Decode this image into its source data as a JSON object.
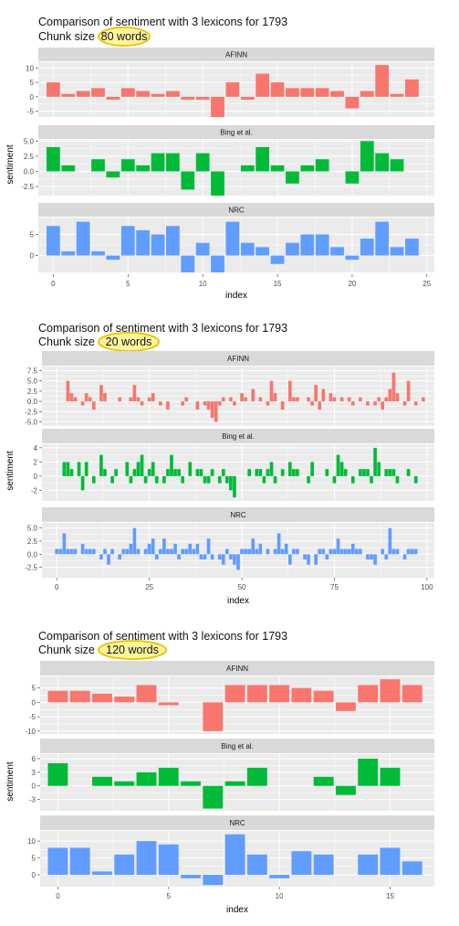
{
  "colors": {
    "AFINN": "#F8766D",
    "Bing et al.": "#00BA38",
    "NRC": "#619CFF",
    "panel_bg": "#EBEBEB",
    "strip_bg": "#D9D9D9",
    "grid": "#FFFFFF",
    "highlight_fill": "#FFF59D",
    "highlight_stroke": "#E6C200"
  },
  "chart_data": [
    {
      "type": "bar",
      "title_line1": "Comparison of sentiment with 3 lexicons for 1793",
      "title_line2_prefix": "Chunk size",
      "title_highlight": "80 words",
      "xlabel": "index",
      "ylabel": "sentiment",
      "xlim": [
        -1,
        25.5
      ],
      "x_ticks": [
        0,
        5,
        10,
        15,
        20,
        25
      ],
      "panels": [
        {
          "name": "AFINN",
          "ylim": [
            -7,
            12
          ],
          "y_ticks": [
            -5,
            0,
            5,
            10
          ],
          "x": [
            0,
            1,
            2,
            3,
            4,
            5,
            6,
            7,
            8,
            9,
            10,
            11,
            12,
            13,
            14,
            15,
            16,
            17,
            18,
            19,
            20,
            21,
            22,
            23,
            24
          ],
          "values": [
            5,
            1,
            2,
            3,
            -1,
            3,
            2,
            1,
            2,
            -1,
            -1,
            -7,
            5,
            -1,
            8,
            5,
            3,
            3,
            3,
            2,
            -4,
            2,
            11,
            1,
            6
          ]
        },
        {
          "name": "Bing et al.",
          "ylim": [
            -4,
            5.2
          ],
          "y_ticks": [
            -2.5,
            0.0,
            2.5,
            5.0
          ],
          "x": [
            0,
            1,
            3,
            4,
            5,
            6,
            7,
            8,
            9,
            10,
            11,
            13,
            14,
            15,
            16,
            17,
            18,
            20,
            21,
            22,
            23
          ],
          "values": [
            4,
            1,
            2,
            -1,
            2,
            1,
            3,
            3,
            -3,
            3,
            -4,
            1,
            4,
            1,
            -2,
            1,
            2,
            -2,
            5,
            3,
            2
          ]
        },
        {
          "name": "NRC",
          "ylim": [
            -4,
            9
          ],
          "y_ticks": [
            0,
            5
          ],
          "x": [
            0,
            1,
            2,
            3,
            4,
            5,
            6,
            7,
            8,
            9,
            10,
            11,
            12,
            13,
            14,
            15,
            16,
            17,
            18,
            19,
            20,
            21,
            22,
            23,
            24
          ],
          "values": [
            7,
            1,
            8,
            1,
            -1,
            7,
            6,
            5,
            7,
            -4,
            3,
            -4,
            8,
            3,
            2,
            -2,
            3,
            5,
            5,
            2,
            -1,
            4,
            8,
            2,
            4
          ]
        }
      ]
    },
    {
      "type": "bar",
      "title_line1": "Comparison of sentiment with 3 lexicons for 1793",
      "title_line2_prefix": "Chunk size",
      "title_highlight": "20 words",
      "xlabel": "index",
      "ylabel": "sentiment",
      "xlim": [
        -4,
        102
      ],
      "x_ticks": [
        0,
        25,
        50,
        75,
        100
      ],
      "panels": [
        {
          "name": "AFINN",
          "ylim": [
            -6,
            8.5
          ],
          "y_ticks": [
            -5.0,
            -2.5,
            0.0,
            2.5,
            5.0,
            7.5
          ],
          "x": [
            3,
            4,
            5,
            7,
            8,
            9,
            10,
            12,
            13,
            17,
            20,
            21,
            22,
            23,
            25,
            26,
            28,
            30,
            34,
            35,
            38,
            40,
            41,
            42,
            43,
            44,
            45,
            47,
            48,
            50,
            51,
            53,
            55,
            57,
            58,
            59,
            61,
            63,
            64,
            65,
            68,
            69,
            70,
            71,
            72,
            74,
            75,
            77,
            79,
            80,
            82,
            84,
            86,
            87,
            88,
            89,
            90,
            91,
            92,
            94,
            95,
            97,
            99
          ],
          "values": [
            5,
            2,
            1,
            -1,
            2,
            1,
            -2,
            4,
            2,
            1,
            1,
            4,
            1,
            -1,
            1,
            2,
            -1,
            -2,
            -1,
            1,
            -2,
            -1,
            -2,
            -4,
            -5,
            -1,
            1,
            1,
            -1,
            2,
            1,
            3,
            1,
            -1,
            5,
            2,
            -2,
            5,
            1,
            1,
            1,
            -1,
            4,
            -2,
            3,
            2,
            1,
            1,
            1,
            -1,
            1,
            -1,
            -1,
            1,
            -2,
            1,
            3,
            7,
            2,
            -1,
            5,
            -1,
            1
          ]
        },
        {
          "name": "Bing et al.",
          "ylim": [
            -3.5,
            4.5
          ],
          "y_ticks": [
            -2,
            0,
            2,
            4
          ],
          "x": [
            2,
            3,
            4,
            6,
            7,
            8,
            10,
            12,
            13,
            15,
            16,
            19,
            20,
            21,
            22,
            23,
            24,
            25,
            26,
            27,
            29,
            30,
            31,
            32,
            33,
            34,
            36,
            38,
            39,
            40,
            41,
            42,
            44,
            45,
            46,
            47,
            48,
            52,
            54,
            55,
            56,
            57,
            58,
            59,
            61,
            63,
            64,
            65,
            68,
            69,
            73,
            75,
            76,
            77,
            78,
            80,
            82,
            83,
            84,
            85,
            86,
            87,
            89,
            90,
            91,
            92,
            95,
            97
          ],
          "values": [
            2,
            2,
            1,
            2,
            -2,
            2,
            -1,
            3,
            1,
            -1,
            1,
            2,
            -1,
            1,
            2,
            3,
            -1,
            1,
            2,
            -1,
            -1,
            1,
            3,
            1,
            1,
            -1,
            2,
            1,
            1,
            -1,
            -1,
            1,
            -1,
            1,
            -1,
            -2,
            -3,
            1,
            1,
            1,
            -1,
            1,
            2,
            -1,
            1,
            2,
            1,
            1,
            -1,
            2,
            1,
            -1,
            3,
            2,
            1,
            -1,
            1,
            1,
            1,
            -1,
            4,
            2,
            1,
            1,
            1,
            -1,
            1,
            -1
          ]
        },
        {
          "name": "NRC",
          "ylim": [
            -4.5,
            6
          ],
          "y_ticks": [
            -2.5,
            0.0,
            2.5,
            5.0
          ],
          "x": [
            0,
            1,
            2,
            3,
            4,
            5,
            7,
            8,
            9,
            10,
            12,
            13,
            14,
            15,
            17,
            18,
            19,
            20,
            21,
            22,
            24,
            25,
            26,
            27,
            28,
            29,
            30,
            31,
            32,
            33,
            34,
            35,
            36,
            37,
            38,
            39,
            40,
            41,
            42,
            44,
            45,
            46,
            47,
            48,
            49,
            50,
            51,
            52,
            53,
            54,
            55,
            57,
            59,
            60,
            61,
            62,
            63,
            64,
            65,
            67,
            68,
            70,
            71,
            72,
            73,
            74,
            75,
            76,
            77,
            78,
            79,
            80,
            81,
            82,
            84,
            85,
            86,
            88,
            89,
            90,
            91,
            92,
            94,
            95,
            96,
            97
          ],
          "values": [
            1,
            1,
            4,
            1,
            1,
            1,
            2,
            1,
            1,
            1,
            -1,
            1,
            -2,
            1,
            -1,
            1,
            1,
            2,
            5,
            1,
            1,
            2,
            3,
            -1,
            1,
            3,
            1,
            1,
            2,
            -1,
            1,
            1,
            2,
            1,
            2,
            -1,
            -1,
            3,
            -1,
            -1,
            -2,
            1,
            -1,
            -2,
            -3,
            1,
            1,
            1,
            3,
            1,
            2,
            1,
            1,
            4,
            1,
            2,
            -2,
            1,
            1,
            -1,
            -2,
            -2,
            1,
            1,
            -1,
            1,
            1,
            3,
            1,
            1,
            1,
            2,
            1,
            1,
            -1,
            -1,
            -2,
            1,
            -1,
            5,
            1,
            1,
            -1,
            1,
            1,
            1
          ]
        }
      ]
    },
    {
      "type": "bar",
      "title_line1": "Comparison of sentiment with 3 lexicons for 1793",
      "title_line2_prefix": "Chunk size",
      "title_highlight": "120 words",
      "xlabel": "index",
      "ylabel": "sentiment",
      "xlim": [
        -0.8,
        17
      ],
      "x_ticks": [
        0,
        5,
        10,
        15
      ],
      "panels": [
        {
          "name": "AFINN",
          "ylim": [
            -11,
            9
          ],
          "y_ticks": [
            -10,
            -5,
            0,
            5
          ],
          "x": [
            0,
            1,
            2,
            3,
            4,
            5,
            7,
            8,
            9,
            10,
            11,
            12,
            13,
            14,
            15,
            16
          ],
          "values": [
            4,
            4,
            3,
            2,
            6,
            -1,
            -10,
            6,
            6,
            6,
            5,
            4,
            -3,
            6,
            8,
            6
          ]
        },
        {
          "name": "Bing et al.",
          "ylim": [
            -5.5,
            7
          ],
          "y_ticks": [
            -3,
            0,
            3,
            6
          ],
          "x": [
            0,
            2,
            3,
            4,
            5,
            6,
            7,
            8,
            9,
            12,
            13,
            14,
            15
          ],
          "values": [
            5,
            2,
            1,
            3,
            4,
            1,
            -5,
            1,
            4,
            2,
            -2,
            6,
            4
          ]
        },
        {
          "name": "NRC",
          "ylim": [
            -3.5,
            13
          ],
          "y_ticks": [
            0,
            5,
            10
          ],
          "x": [
            0,
            1,
            2,
            3,
            4,
            5,
            6,
            7,
            8,
            9,
            10,
            11,
            12,
            14,
            15,
            16
          ],
          "values": [
            8,
            8,
            1,
            6,
            10,
            9,
            -1,
            -3,
            12,
            6,
            -1,
            7,
            6,
            6,
            8,
            4
          ]
        }
      ]
    }
  ]
}
